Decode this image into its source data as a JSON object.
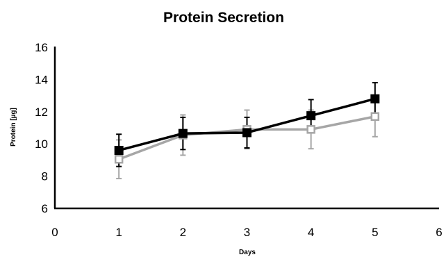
{
  "chart_data": {
    "type": "line",
    "title": "Protein Secretion",
    "xlabel": "Days",
    "ylabel": "Protein [µg]",
    "xlim": [
      0,
      6
    ],
    "ylim": [
      6,
      16
    ],
    "xticks": [
      "0",
      "1",
      "2",
      "3",
      "4",
      "5",
      "6"
    ],
    "yticks": [
      "6",
      "8",
      "10",
      "12",
      "14",
      "16"
    ],
    "grid": false,
    "legend": "none",
    "x": [
      1,
      2,
      3,
      4,
      5
    ],
    "series": [
      {
        "values": [
          9.6,
          10.65,
          10.7,
          11.75,
          12.8
        ],
        "error": [
          1.0,
          1.0,
          0.95,
          1.0,
          1.0
        ],
        "color": "#000000",
        "marker": "filled-square"
      },
      {
        "values": [
          9.05,
          10.55,
          10.9,
          10.9,
          11.7
        ],
        "error": [
          1.2,
          1.25,
          1.2,
          1.2,
          1.25
        ],
        "color": "#a6a6a6",
        "marker": "open-square"
      }
    ]
  }
}
